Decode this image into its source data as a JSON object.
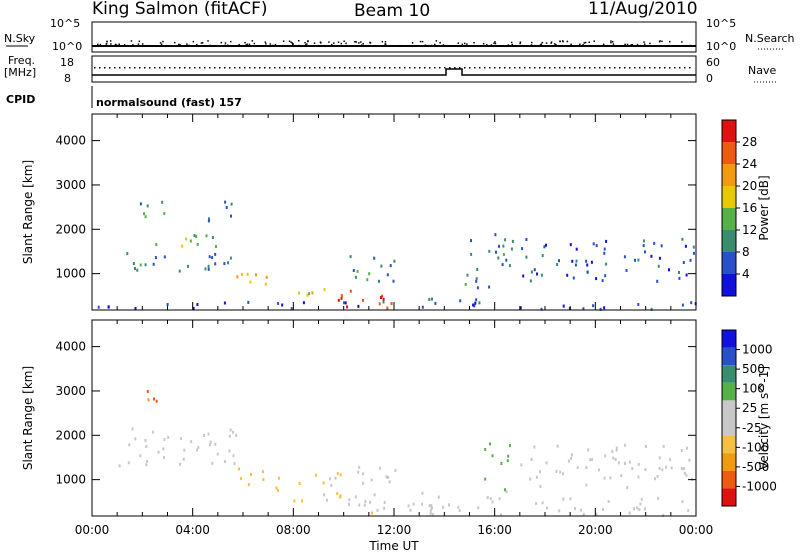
{
  "header": {
    "station": "King Salmon (fitACF)",
    "beam": "Beam 10",
    "date": "11/Aug/2010"
  },
  "aux_panels": {
    "nsky_label": "N.Sky",
    "nsearch_label": "N.Search",
    "freq_label": "Freq.",
    "freq_unit": "[MHz]",
    "nave_label": "Nave",
    "cpid_label": "CPID",
    "cpid_value": "normalsound (fast) 157",
    "noise_left_ticks": [
      "10^5",
      "10^0"
    ],
    "noise_right_ticks": [
      "10^5",
      "10^0"
    ],
    "freq_left_ticks": [
      "18",
      "8"
    ],
    "nave_right_ticks": [
      "60",
      "0"
    ]
  },
  "colors": {
    "power_scale": [
      "#1010e0",
      "#2850c8",
      "#3a8c6e",
      "#55b04a",
      "#e8c800",
      "#f09a10",
      "#f05a10",
      "#e01010"
    ],
    "velocity_scale": [
      "#e01010",
      "#f05a10",
      "#f09a10",
      "#f5c040",
      "#c8c8c8",
      "#c8c8c8",
      "#55b04a",
      "#3a8c6e",
      "#2850c8",
      "#1010e0"
    ]
  },
  "chart_data": [
    {
      "type": "heatmap",
      "title": "",
      "xlabel": "Time UT",
      "ylabel": "Slant Range [km]",
      "xlim": [
        "00:00",
        "24:00"
      ],
      "ylim": [
        180,
        4600
      ],
      "x_ticks": [
        "00:00",
        "04:00",
        "08:00",
        "12:00",
        "16:00",
        "20:00",
        "00:00"
      ],
      "y_ticks": [
        1000,
        2000,
        3000,
        4000
      ],
      "colorbar": {
        "label": "Power [dB]",
        "ticks": [
          "28",
          "24",
          "20",
          "16",
          "12",
          "8",
          "4"
        ],
        "range": [
          0,
          30
        ]
      },
      "regions": [
        {
          "t": [
            0.5,
            5.5
          ],
          "r": [
            1000,
            1500
          ],
          "value": 8
        },
        {
          "t": [
            2.5,
            5.0
          ],
          "r": [
            1500,
            2000
          ],
          "value": 14
        },
        {
          "t": [
            1.8,
            3.0
          ],
          "r": [
            2000,
            2600
          ],
          "value": 10
        },
        {
          "t": [
            4.6,
            5.7
          ],
          "r": [
            2000,
            2700
          ],
          "value": 6
        },
        {
          "t": [
            5.5,
            7.5
          ],
          "r": [
            700,
            1100
          ],
          "value": 18
        },
        {
          "t": [
            8.0,
            9.5
          ],
          "r": [
            500,
            900
          ],
          "value": 16
        },
        {
          "t": [
            9.0,
            12.5
          ],
          "r": [
            200,
            600
          ],
          "value": 26
        },
        {
          "t": [
            9.5,
            12.0
          ],
          "r": [
            800,
            1400
          ],
          "value": 8
        },
        {
          "t": [
            12.5,
            15.5
          ],
          "r": [
            200,
            450
          ],
          "value": 8
        },
        {
          "t": [
            14.8,
            16.7
          ],
          "r": [
            600,
            2000
          ],
          "value": 8
        },
        {
          "t": [
            17.0,
            24.0
          ],
          "r": [
            800,
            1800
          ],
          "value": 6
        },
        {
          "t": [
            0.0,
            24.0
          ],
          "r": [
            180,
            350
          ],
          "value": 4
        }
      ]
    },
    {
      "type": "heatmap",
      "title": "",
      "xlabel": "Time UT",
      "ylabel": "Slant Range [km]",
      "xlim": [
        "00:00",
        "24:00"
      ],
      "ylim": [
        180,
        4600
      ],
      "x_ticks": [
        "00:00",
        "04:00",
        "08:00",
        "12:00",
        "16:00",
        "20:00",
        "00:00"
      ],
      "y_ticks": [
        1000,
        2000,
        3000,
        4000
      ],
      "colorbar": {
        "label": "Velocity [m s^-1]",
        "ticks": [
          "1000",
          "500",
          "100",
          "25",
          "-25",
          "-100",
          "-500",
          "-1000"
        ],
        "range": [
          -1000,
          1000
        ]
      },
      "regions": [
        {
          "t": [
            2.0,
            2.6
          ],
          "r": [
            2300,
            3000
          ],
          "value": -700
        },
        {
          "t": [
            1.0,
            6.0
          ],
          "r": [
            1300,
            2200
          ],
          "value": 0
        },
        {
          "t": [
            5.7,
            7.5
          ],
          "r": [
            700,
            1300
          ],
          "value": -250
        },
        {
          "t": [
            8.0,
            10.5
          ],
          "r": [
            500,
            1200
          ],
          "value": -200
        },
        {
          "t": [
            10.0,
            14.0
          ],
          "r": [
            200,
            700
          ],
          "value": -80
        },
        {
          "t": [
            10.5,
            12.5
          ],
          "r": [
            800,
            1400
          ],
          "value": 0
        },
        {
          "t": [
            15.5,
            16.6
          ],
          "r": [
            700,
            1800
          ],
          "value": 300
        },
        {
          "t": [
            17.0,
            24.0
          ],
          "r": [
            800,
            1800
          ],
          "value": 0
        },
        {
          "t": [
            12.5,
            24.0
          ],
          "r": [
            180,
            600
          ],
          "value": 60
        }
      ]
    }
  ]
}
